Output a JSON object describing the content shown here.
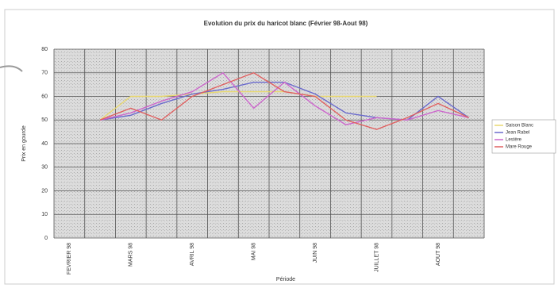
{
  "chart_data": {
    "type": "line",
    "title": "Evolution du prix du haricot blanc (Février 98-Aout 98)",
    "x_label": "Période",
    "y_label": "Prix en gourde",
    "categories": [
      "FEVRIER 98",
      null,
      "MARS 98",
      null,
      "AVRIL 98",
      null,
      "MAI 98",
      null,
      "JUIN 98",
      null,
      "JUILLET 98",
      null,
      "AOUT 98",
      null
    ],
    "series": [
      {
        "name": "Saison Blanc",
        "color": "#e8d870",
        "values": [
          null,
          50,
          60,
          60,
          61,
          62,
          62,
          62,
          60,
          60,
          60,
          null,
          null,
          null
        ]
      },
      {
        "name": "Jean Rabel",
        "color": "#6a6acc",
        "values": [
          null,
          50,
          52,
          57,
          61,
          63,
          66,
          66,
          61,
          53,
          51,
          50,
          60,
          51
        ]
      },
      {
        "name": "Lestère",
        "color": "#cc66cc",
        "values": [
          null,
          50,
          53,
          58,
          62,
          70,
          55,
          66,
          56,
          48,
          51,
          50,
          54,
          51
        ]
      },
      {
        "name": "Mare Rouge",
        "color": "#e06060",
        "values": [
          null,
          50,
          55,
          50,
          60,
          65,
          70,
          62,
          60,
          50,
          46,
          51,
          57,
          51
        ]
      }
    ],
    "ylim": [
      0,
      80
    ],
    "yticks": [
      0,
      10,
      20,
      30,
      40,
      50,
      60,
      70,
      80
    ],
    "grid": true,
    "legend": "right"
  }
}
